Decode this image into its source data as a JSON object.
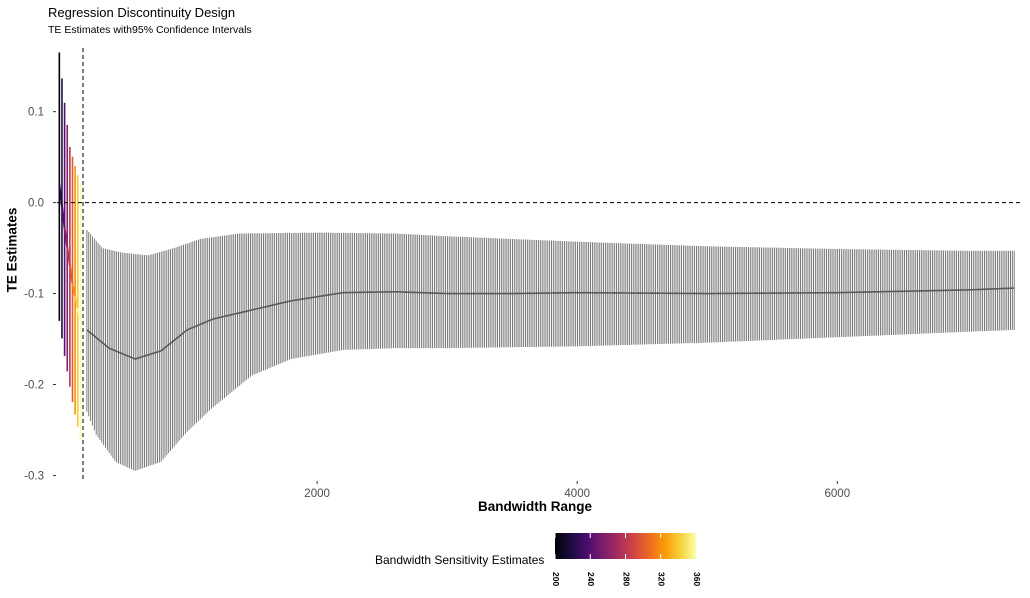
{
  "chart_data": {
    "type": "errorbar",
    "title": "Regression Discontinuity Design",
    "subtitle": "TE Estimates with95% Confidence Intervals",
    "xlabel": "Bandwidth Range",
    "ylabel": "TE Estimates",
    "xlim": [
      0,
      7420
    ],
    "ylim": [
      -0.305,
      0.17
    ],
    "x_ticks": [
      2000,
      4000,
      6000
    ],
    "x_tick_labels": [
      "2000",
      "4000",
      "6000"
    ],
    "y_ticks": [
      0.1,
      0.0,
      -0.1,
      -0.2,
      -0.3
    ],
    "y_tick_labels": [
      "0.1",
      "0.0",
      "-0.1",
      "-0.2",
      "-0.3"
    ],
    "reference_lines": {
      "y": 0.0,
      "x": 200
    },
    "grid": false,
    "gray_series": {
      "x_start": 230,
      "x_end": 7360,
      "n_bars": 500,
      "color": "#6b6b6b",
      "estimate_knots": [
        [
          230,
          -0.14
        ],
        [
          400,
          -0.16
        ],
        [
          600,
          -0.172
        ],
        [
          800,
          -0.163
        ],
        [
          1000,
          -0.14
        ],
        [
          1200,
          -0.128
        ],
        [
          1500,
          -0.118
        ],
        [
          1800,
          -0.108
        ],
        [
          2200,
          -0.099
        ],
        [
          2600,
          -0.098
        ],
        [
          3000,
          -0.1
        ],
        [
          3500,
          -0.1
        ],
        [
          4000,
          -0.099
        ],
        [
          5000,
          -0.1
        ],
        [
          6000,
          -0.099
        ],
        [
          7000,
          -0.096
        ],
        [
          7360,
          -0.094
        ]
      ],
      "lower_knots": [
        [
          230,
          -0.23
        ],
        [
          300,
          -0.255
        ],
        [
          450,
          -0.285
        ],
        [
          600,
          -0.295
        ],
        [
          800,
          -0.285
        ],
        [
          1000,
          -0.252
        ],
        [
          1200,
          -0.225
        ],
        [
          1500,
          -0.19
        ],
        [
          1800,
          -0.172
        ],
        [
          2200,
          -0.162
        ],
        [
          2600,
          -0.16
        ],
        [
          3000,
          -0.16
        ],
        [
          4000,
          -0.158
        ],
        [
          5000,
          -0.154
        ],
        [
          6000,
          -0.148
        ],
        [
          7000,
          -0.142
        ],
        [
          7360,
          -0.14
        ]
      ],
      "upper_knots": [
        [
          230,
          -0.03
        ],
        [
          350,
          -0.05
        ],
        [
          500,
          -0.055
        ],
        [
          700,
          -0.058
        ],
        [
          900,
          -0.05
        ],
        [
          1100,
          -0.04
        ],
        [
          1400,
          -0.034
        ],
        [
          2000,
          -0.033
        ],
        [
          2600,
          -0.034
        ],
        [
          3000,
          -0.037
        ],
        [
          4000,
          -0.043
        ],
        [
          5000,
          -0.048
        ],
        [
          6000,
          -0.051
        ],
        [
          7000,
          -0.053
        ],
        [
          7360,
          -0.053
        ]
      ]
    },
    "sensitivity_series": {
      "name": "Bandwidth Sensitivity Estimates",
      "x_start": 18,
      "x_end": 180,
      "n_bars": 9,
      "bw_range": [
        200,
        360
      ],
      "estimate_knots": [
        [
          18,
          0.02
        ],
        [
          60,
          -0.03
        ],
        [
          120,
          -0.09
        ],
        [
          180,
          -0.13
        ]
      ],
      "lower_knots": [
        [
          18,
          -0.13
        ],
        [
          60,
          -0.17
        ],
        [
          120,
          -0.22
        ],
        [
          180,
          -0.26
        ]
      ],
      "upper_knots": [
        [
          18,
          0.165
        ],
        [
          50,
          0.12
        ],
        [
          100,
          0.06
        ],
        [
          180,
          0.02
        ]
      ]
    },
    "colorbar": {
      "title": "Bandwidth Sensitivity Estimates",
      "min": 200,
      "max": 360,
      "ticks": [
        200,
        240,
        280,
        320,
        360
      ],
      "tick_labels": [
        "200",
        "240",
        "280",
        "320",
        "360"
      ],
      "stops": [
        "#000004",
        "#1b0c41",
        "#4a0c6b",
        "#781c6d",
        "#a52c60",
        "#cf4446",
        "#ed6925",
        "#fb9b06",
        "#f7d13d",
        "#fcffa4"
      ]
    }
  }
}
